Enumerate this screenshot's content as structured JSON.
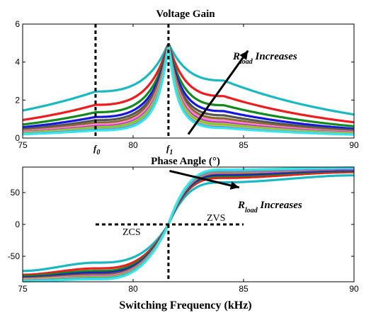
{
  "chart_data": [
    {
      "type": "line",
      "title": "Voltage Gain",
      "xlabel": "",
      "ylabel": "",
      "xlim": [
        75,
        90
      ],
      "ylim": [
        0,
        6
      ],
      "xticks": [
        75,
        80,
        85,
        90
      ],
      "yticks": [
        0,
        2,
        4,
        6
      ],
      "peak": {
        "x": 81.6,
        "y": 5
      },
      "grid": false,
      "vertical_markers": [
        {
          "x": 78.3,
          "label": "f",
          "sub": "0"
        },
        {
          "x": 81.6,
          "label": "f",
          "sub": "1"
        }
      ],
      "annotation": {
        "main": "R",
        "sub": "load",
        "rest": " Increases",
        "from": [
          82.5,
          0.2
        ],
        "to": [
          85.2,
          4.6
        ]
      },
      "series": [
        {
          "color": "#19b9c4",
          "values": [
            [
              75,
              1.45
            ],
            [
              78.3,
              2.45
            ],
            [
              81.6,
              5.0
            ],
            [
              84.1,
              3.03
            ],
            [
              90,
              1.24
            ]
          ]
        },
        {
          "color": "#ee1c1c",
          "values": [
            [
              75,
              0.95
            ],
            [
              78.3,
              1.75
            ],
            [
              81.6,
              5.0
            ],
            [
              84.1,
              2.21
            ],
            [
              90,
              0.83
            ]
          ]
        },
        {
          "color": "#138a1e",
          "values": [
            [
              75,
              0.71
            ],
            [
              78.3,
              1.36
            ],
            [
              81.6,
              5.0
            ],
            [
              84.1,
              1.73
            ],
            [
              90,
              0.62
            ]
          ]
        },
        {
          "color": "#1616e0",
          "values": [
            [
              75,
              0.57
            ],
            [
              78.3,
              1.11
            ],
            [
              81.6,
              5.0
            ],
            [
              84.1,
              1.42
            ],
            [
              90,
              0.49
            ]
          ]
        },
        {
          "color": "#555555",
          "values": [
            [
              75,
              0.47
            ],
            [
              78.3,
              0.94
            ],
            [
              81.6,
              5.0
            ],
            [
              84.1,
              1.2
            ],
            [
              90,
              0.41
            ]
          ]
        },
        {
          "color": "#8a6a2a",
          "values": [
            [
              75,
              0.41
            ],
            [
              78.3,
              0.81
            ],
            [
              81.6,
              5.0
            ],
            [
              84.1,
              1.04
            ],
            [
              90,
              0.35
            ]
          ]
        },
        {
          "color": "#ff8ac8",
          "values": [
            [
              75,
              0.36
            ],
            [
              78.3,
              0.71
            ],
            [
              81.6,
              5.0
            ],
            [
              84.1,
              0.92
            ],
            [
              90,
              0.31
            ]
          ]
        },
        {
          "color": "#b43cd8",
          "values": [
            [
              75,
              0.32
            ],
            [
              78.3,
              0.63
            ],
            [
              81.6,
              5.0
            ],
            [
              84.1,
              0.82
            ],
            [
              90,
              0.28
            ]
          ]
        },
        {
          "color": "#b8c820",
          "values": [
            [
              75,
              0.29
            ],
            [
              78.3,
              0.57
            ],
            [
              81.6,
              5.0
            ],
            [
              84.1,
              0.74
            ],
            [
              90,
              0.25
            ]
          ]
        },
        {
          "color": "#2ee02e",
          "values": [
            [
              75,
              0.26
            ],
            [
              78.3,
              0.52
            ],
            [
              81.6,
              5.0
            ],
            [
              84.1,
              0.67
            ],
            [
              90,
              0.23
            ]
          ]
        },
        {
          "color": "#ffb070",
          "values": [
            [
              75,
              0.24
            ],
            [
              78.3,
              0.47
            ],
            [
              81.6,
              5.0
            ],
            [
              84.1,
              0.62
            ],
            [
              90,
              0.21
            ]
          ]
        },
        {
          "color": "#5a8af0",
          "values": [
            [
              75,
              0.22
            ],
            [
              78.3,
              0.44
            ],
            [
              81.6,
              5.0
            ],
            [
              84.1,
              0.57
            ],
            [
              90,
              0.19
            ]
          ]
        },
        {
          "color": "#38e6e6",
          "values": [
            [
              75,
              0.2
            ],
            [
              78.3,
              0.4
            ],
            [
              81.6,
              5.0
            ],
            [
              84.1,
              0.53
            ],
            [
              90,
              0.18
            ]
          ]
        }
      ]
    },
    {
      "type": "line",
      "title": "Phase Angle (°)",
      "xlabel": "Switching Frequency (kHz)",
      "ylabel": "",
      "xlim": [
        75,
        90
      ],
      "ylim": [
        -90,
        90
      ],
      "xticks": [
        75,
        80,
        85,
        90
      ],
      "yticks": [
        -50,
        0,
        50
      ],
      "zero_crossing_x": 81.6,
      "grid": false,
      "boundary": {
        "x": 81.6,
        "y_low": -90,
        "x_left": 78.3,
        "x_right": 85
      },
      "zones": {
        "left": "ZCS",
        "right": "ZVS"
      },
      "annotation": {
        "main": "R",
        "sub": "load",
        "rest": " Increases",
        "from": [
          81.65,
          84
        ],
        "to": [
          84.8,
          58
        ]
      },
      "series": [
        {
          "color": "#19b9c4",
          "values": [
            [
              75,
              -73
            ],
            [
              78.3,
              -60
            ],
            [
              81.6,
              0
            ],
            [
              84.1,
              66
            ],
            [
              90,
              77
            ]
          ]
        },
        {
          "color": "#ee1c1c",
          "values": [
            [
              75,
              -79
            ],
            [
              78.3,
              -69
            ],
            [
              81.6,
              0
            ],
            [
              84.1,
              73
            ],
            [
              90,
              82
            ]
          ]
        },
        {
          "color": "#138a1e",
          "values": [
            [
              75,
              -81
            ],
            [
              78.3,
              -73
            ],
            [
              81.6,
              0
            ],
            [
              84.1,
              76
            ],
            [
              90,
              84
            ]
          ]
        },
        {
          "color": "#1616e0",
          "values": [
            [
              75,
              -83
            ],
            [
              78.3,
              -76
            ],
            [
              81.6,
              0
            ],
            [
              84.1,
              78
            ],
            [
              90,
              85
            ]
          ]
        },
        {
          "color": "#555555",
          "values": [
            [
              75,
              -84
            ],
            [
              78.3,
              -78
            ],
            [
              81.6,
              0
            ],
            [
              84.1,
              80
            ],
            [
              90,
              86
            ]
          ]
        },
        {
          "color": "#8a6a2a",
          "values": [
            [
              75,
              -85
            ],
            [
              78.3,
              -80
            ],
            [
              81.6,
              0
            ],
            [
              84.1,
              81
            ],
            [
              90,
              87
            ]
          ]
        },
        {
          "color": "#ff8ac8",
          "values": [
            [
              75,
              -86
            ],
            [
              78.3,
              -81
            ],
            [
              81.6,
              0
            ],
            [
              84.1,
              82
            ],
            [
              90,
              87
            ]
          ]
        },
        {
          "color": "#b43cd8",
          "values": [
            [
              75,
              -87
            ],
            [
              78.3,
              -82
            ],
            [
              81.6,
              0
            ],
            [
              84.1,
              83
            ],
            [
              90,
              87
            ]
          ]
        },
        {
          "color": "#b8c820",
          "values": [
            [
              75,
              -87
            ],
            [
              78.3,
              -83
            ],
            [
              81.6,
              0
            ],
            [
              84.1,
              84
            ],
            [
              90,
              88
            ]
          ]
        },
        {
          "color": "#2ee02e",
          "values": [
            [
              75,
              -88
            ],
            [
              78.3,
              -84
            ],
            [
              81.6,
              0
            ],
            [
              84.1,
              84
            ],
            [
              90,
              88
            ]
          ]
        },
        {
          "color": "#ffb070",
          "values": [
            [
              75,
              -88
            ],
            [
              78.3,
              -85
            ],
            [
              81.6,
              0
            ],
            [
              84.1,
              85
            ],
            [
              90,
              88
            ]
          ]
        },
        {
          "color": "#5a8af0",
          "values": [
            [
              75,
              -88
            ],
            [
              78.3,
              -85
            ],
            [
              81.6,
              0
            ],
            [
              84.1,
              85
            ],
            [
              90,
              88
            ]
          ]
        },
        {
          "color": "#38e6e6",
          "values": [
            [
              75,
              -89
            ],
            [
              78.3,
              -86
            ],
            [
              81.6,
              0
            ],
            [
              84.1,
              86
            ],
            [
              90,
              89
            ]
          ]
        }
      ]
    }
  ]
}
